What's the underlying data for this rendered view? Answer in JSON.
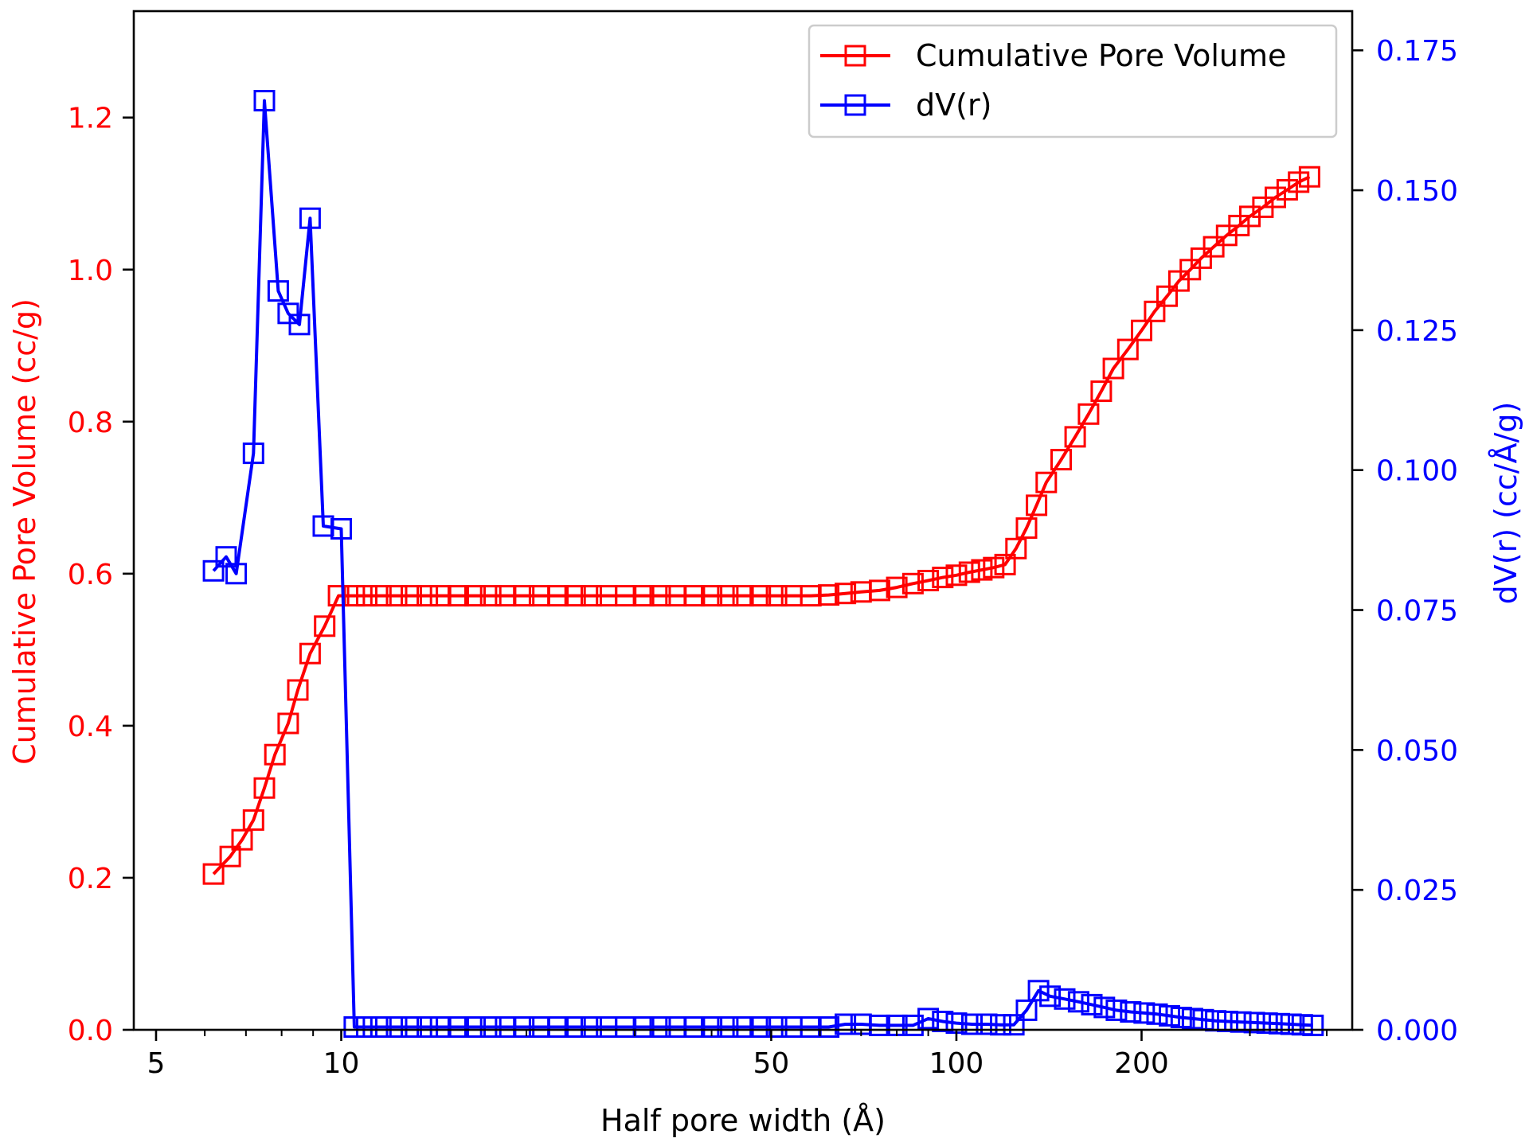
{
  "chart_data": {
    "type": "line",
    "title": "",
    "xlabel": "Half pore width (Å)",
    "ylabel_left": "Cumulative Pore Volume (cc/g)",
    "ylabel_right": "dV(r) (cc/Å/g)",
    "x_scale": "log",
    "xlim": [
      4.6,
      440
    ],
    "ylim_left": [
      0,
      1.34
    ],
    "ylim_right": [
      0,
      0.182
    ],
    "x_ticks": [
      5,
      10,
      50,
      100,
      200
    ],
    "x_tick_labels": [
      "5",
      "10",
      "50",
      "100",
      "200"
    ],
    "y_left_ticks": [
      0.0,
      0.2,
      0.4,
      0.6,
      0.8,
      1.0,
      1.2
    ],
    "y_left_tick_labels": [
      "0.0",
      "0.2",
      "0.4",
      "0.6",
      "0.8",
      "1.0",
      "1.2"
    ],
    "y_right_ticks": [
      0,
      0.025,
      0.05,
      0.075,
      0.1,
      0.125,
      0.15,
      0.175
    ],
    "y_right_tick_labels": [
      "0.000",
      "0.025",
      "0.050",
      "0.075",
      "0.100",
      "0.125",
      "0.150",
      "0.175"
    ],
    "grid": false,
    "legend_position": "top-right",
    "series": [
      {
        "name": "Cumulative Pore Volume",
        "axis": "left",
        "color": "#ff0000",
        "marker": "open-square",
        "x": [
          6.2,
          6.6,
          6.9,
          7.2,
          7.5,
          7.8,
          8.2,
          8.5,
          8.9,
          9.4,
          9.9,
          10.5,
          11.0,
          11.6,
          12.3,
          13.0,
          13.8,
          14.5,
          15.5,
          16.5,
          17.5,
          18.5,
          19.8,
          21.0,
          22.5,
          24.0,
          25.5,
          27.0,
          29.0,
          31.0,
          33.0,
          35.0,
          37.5,
          40.0,
          42.5,
          45.0,
          48.0,
          51.0,
          54.0,
          58.0,
          62.0,
          66.0,
          70.0,
          75.0,
          80.0,
          85.0,
          90.0,
          95.0,
          100.0,
          105.0,
          110.0,
          115.0,
          120.0,
          125.0,
          130.0,
          135.0,
          140.0,
          148.0,
          156.0,
          164.0,
          172.0,
          180.0,
          190.0,
          200.0,
          210.0,
          220.0,
          230.0,
          240.0,
          250.0,
          262.0,
          275.0,
          288.0,
          300.0,
          315.0,
          330.0,
          345.0,
          360.0,
          375.0
        ],
        "y": [
          0.205,
          0.228,
          0.25,
          0.276,
          0.318,
          0.362,
          0.403,
          0.447,
          0.495,
          0.531,
          0.571,
          0.571,
          0.571,
          0.571,
          0.571,
          0.571,
          0.571,
          0.571,
          0.571,
          0.571,
          0.571,
          0.571,
          0.571,
          0.571,
          0.571,
          0.571,
          0.571,
          0.571,
          0.571,
          0.571,
          0.571,
          0.571,
          0.571,
          0.571,
          0.571,
          0.571,
          0.571,
          0.571,
          0.571,
          0.571,
          0.572,
          0.574,
          0.576,
          0.578,
          0.582,
          0.587,
          0.591,
          0.595,
          0.598,
          0.602,
          0.605,
          0.608,
          0.612,
          0.633,
          0.66,
          0.69,
          0.72,
          0.75,
          0.78,
          0.81,
          0.84,
          0.87,
          0.895,
          0.92,
          0.945,
          0.965,
          0.985,
          1.0,
          1.015,
          1.03,
          1.045,
          1.058,
          1.07,
          1.082,
          1.095,
          1.105,
          1.115,
          1.122
        ]
      },
      {
        "name": "dV(r)",
        "axis": "right",
        "color": "#0000ff",
        "marker": "open-square",
        "x": [
          6.2,
          6.5,
          6.75,
          7.2,
          7.5,
          7.9,
          8.2,
          8.55,
          8.9,
          9.35,
          10.0,
          10.5,
          11.0,
          11.6,
          12.3,
          13.0,
          13.8,
          14.5,
          15.5,
          16.5,
          17.5,
          18.5,
          19.8,
          21.0,
          22.5,
          24.0,
          25.5,
          27.0,
          29.0,
          31.0,
          33.0,
          35.0,
          37.5,
          40.0,
          42.5,
          45.0,
          48.0,
          51.0,
          54.0,
          58.0,
          62.0,
          66.0,
          70.0,
          75.0,
          80.0,
          85.0,
          90.0,
          95.0,
          100.0,
          106.0,
          112.0,
          118.0,
          124.0,
          130.0,
          136.0,
          142.0,
          150.0,
          158.0,
          166.0,
          174.0,
          182.0,
          192.0,
          202.0,
          212.0,
          222.0,
          232.0,
          242.0,
          252.0,
          264.0,
          276.0,
          290.0,
          305.0,
          320.0,
          335.0,
          350.0,
          365.0,
          380.0
        ],
        "y": [
          0.082,
          0.0845,
          0.0815,
          0.103,
          0.166,
          0.132,
          0.128,
          0.126,
          0.145,
          0.09,
          0.0895,
          0.0005,
          0.0005,
          0.0005,
          0.0005,
          0.0005,
          0.0005,
          0.0005,
          0.0005,
          0.0005,
          0.0005,
          0.0005,
          0.0005,
          0.0005,
          0.0005,
          0.0005,
          0.0005,
          0.0005,
          0.0005,
          0.0005,
          0.0005,
          0.0005,
          0.0005,
          0.0005,
          0.0005,
          0.0005,
          0.0005,
          0.0005,
          0.0005,
          0.0005,
          0.0005,
          0.001,
          0.001,
          0.0008,
          0.0008,
          0.0008,
          0.002,
          0.0015,
          0.0012,
          0.001,
          0.001,
          0.0009,
          0.0009,
          0.0035,
          0.007,
          0.006,
          0.0055,
          0.005,
          0.0045,
          0.004,
          0.0035,
          0.0032,
          0.003,
          0.0028,
          0.0025,
          0.0022,
          0.002,
          0.0018,
          0.0016,
          0.0015,
          0.0014,
          0.0013,
          0.0012,
          0.0011,
          0.001,
          0.0009,
          0.0008
        ]
      }
    ]
  }
}
